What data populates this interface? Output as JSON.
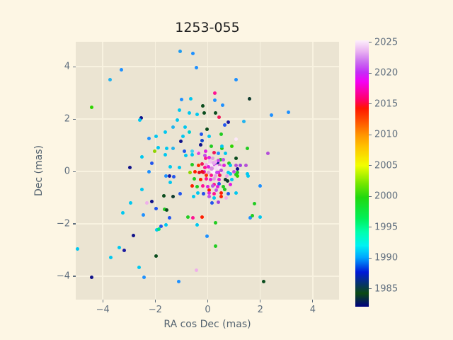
{
  "colors": {
    "figure_bg": "#fdf6e4",
    "plot_bg": "#ebe4d2",
    "grid": "#f8f2e0",
    "tick_text": "#5f6e7e",
    "axis_label_text": "#53626f",
    "title_text": "#222222"
  },
  "chart_data": {
    "type": "scatter",
    "title": "1253-055",
    "xlabel": "RA cos Dec (mas)",
    "ylabel": "Dec (mas)",
    "xlim": [
      -5.03,
      5.0
    ],
    "ylim": [
      -4.89,
      4.95
    ],
    "grid": true,
    "xticks": [
      -4,
      -2,
      0,
      2,
      4
    ],
    "xtick_labels": [
      "−4",
      "−2",
      "0",
      "2",
      "4"
    ],
    "yticks": [
      -4,
      -2,
      0,
      2,
      4
    ],
    "ytick_labels": [
      "−4",
      "−2",
      "0",
      "2",
      "4"
    ],
    "point_size": 5,
    "colorbar": {
      "min": 1982.1,
      "max": 2025.3,
      "ticks": [
        1985,
        1990,
        1995,
        2000,
        2005,
        2010,
        2015,
        2020,
        2025
      ],
      "tick_labels": [
        "1985",
        "1990",
        "1995",
        "2000",
        "2005",
        "2010",
        "2015",
        "2020",
        "2025"
      ],
      "legend_position": "right",
      "gradient_stops": [
        {
          "pos": 0.0,
          "color": "#000080"
        },
        {
          "pos": 0.05,
          "color": "#0b4a12"
        },
        {
          "pos": 0.13,
          "color": "#0018d8"
        },
        {
          "pos": 0.185,
          "color": "#00a6ff"
        },
        {
          "pos": 0.23,
          "color": "#00f2f2"
        },
        {
          "pos": 0.28,
          "color": "#00ffae"
        },
        {
          "pos": 0.33,
          "color": "#00f05a"
        },
        {
          "pos": 0.41,
          "color": "#20d80f"
        },
        {
          "pos": 0.46,
          "color": "#71e600"
        },
        {
          "pos": 0.53,
          "color": "#f2ff00"
        },
        {
          "pos": 0.6,
          "color": "#ffc300"
        },
        {
          "pos": 0.645,
          "color": "#ff9500"
        },
        {
          "pos": 0.7,
          "color": "#ff4d00"
        },
        {
          "pos": 0.745,
          "color": "#ff1600"
        },
        {
          "pos": 0.775,
          "color": "#ff0062"
        },
        {
          "pos": 0.845,
          "color": "#f400f4"
        },
        {
          "pos": 0.88,
          "color": "#c32cf7"
        },
        {
          "pos": 0.92,
          "color": "#cc70f0"
        },
        {
          "pos": 0.96,
          "color": "#eab4f2"
        },
        {
          "pos": 1.0,
          "color": "#fdeffb"
        }
      ]
    },
    "points": [
      {
        "x": -1.05,
        "y": 4.59,
        "c": "#1e9bf0"
      },
      {
        "x": -0.57,
        "y": 4.51,
        "c": "#1e90ff"
      },
      {
        "x": -0.43,
        "y": 3.95,
        "c": "#1e90ff"
      },
      {
        "x": -3.3,
        "y": 3.89,
        "c": "#1e90ff"
      },
      {
        "x": -3.73,
        "y": 3.51,
        "c": "#22b3ee"
      },
      {
        "x": -4.41,
        "y": 2.46,
        "c": "#2ed500"
      },
      {
        "x": -1.0,
        "y": 2.76,
        "c": "#1e90ff"
      },
      {
        "x": -0.65,
        "y": 2.78,
        "c": "#00c8f0"
      },
      {
        "x": -0.19,
        "y": 2.51,
        "c": "#0b4d1e"
      },
      {
        "x": -0.14,
        "y": 2.22,
        "c": "#0b4d1e"
      },
      {
        "x": -1.08,
        "y": 2.35,
        "c": "#00c8f0"
      },
      {
        "x": -0.7,
        "y": 2.24,
        "c": "#00c8f0"
      },
      {
        "x": -0.41,
        "y": 2.19,
        "c": "#00c8f0"
      },
      {
        "x": -2.54,
        "y": 2.05,
        "c": "#10128a"
      },
      {
        "x": -2.59,
        "y": 1.97,
        "c": "#00c8f0"
      },
      {
        "x": -0.03,
        "y": 1.62,
        "c": "#0b4d1e"
      },
      {
        "x": -1.16,
        "y": 1.97,
        "c": "#00c8f0"
      },
      {
        "x": -1.62,
        "y": 1.51,
        "c": "#00c8f0"
      },
      {
        "x": -1.32,
        "y": 1.7,
        "c": "#22b3ee"
      },
      {
        "x": -0.86,
        "y": 1.7,
        "c": "#00c8f0"
      },
      {
        "x": -0.7,
        "y": 1.49,
        "c": "#00d0d0"
      },
      {
        "x": -0.24,
        "y": 1.41,
        "c": "#2255ee"
      },
      {
        "x": -0.22,
        "y": 1.19,
        "c": "#1144cc"
      },
      {
        "x": -1.03,
        "y": 1.14,
        "c": "#10128a"
      },
      {
        "x": -0.95,
        "y": 1.35,
        "c": "#00c8f0"
      },
      {
        "x": -2.24,
        "y": 1.27,
        "c": "#1e90ff"
      },
      {
        "x": -1.97,
        "y": 1.35,
        "c": "#00c8f0"
      },
      {
        "x": -1.89,
        "y": 0.92,
        "c": "#00c8f0"
      },
      {
        "x": -2.03,
        "y": 0.76,
        "c": "#8fd400"
      },
      {
        "x": -1.57,
        "y": 0.89,
        "c": "#00c8f0"
      },
      {
        "x": -1.32,
        "y": 0.89,
        "c": "#22b3ee"
      },
      {
        "x": -1.62,
        "y": 0.65,
        "c": "#00c8f0"
      },
      {
        "x": -0.89,
        "y": 0.76,
        "c": "#2255ee"
      },
      {
        "x": -0.84,
        "y": 0.62,
        "c": "#00c8f0"
      },
      {
        "x": -0.59,
        "y": 0.65,
        "c": "#00c8f0"
      },
      {
        "x": -0.35,
        "y": 0.68,
        "c": "#e040e0"
      },
      {
        "x": -0.11,
        "y": 0.62,
        "c": "#c050e8"
      },
      {
        "x": -2.51,
        "y": 0.57,
        "c": "#00c8f0"
      },
      {
        "x": -2.14,
        "y": 0.32,
        "c": "#2255ee"
      },
      {
        "x": -2.97,
        "y": 0.14,
        "c": "#10128a"
      },
      {
        "x": -2.24,
        "y": 0.0,
        "c": "#1e90ff"
      },
      {
        "x": -1.43,
        "y": 0.19,
        "c": "#00c8f0"
      },
      {
        "x": -1.08,
        "y": 0.14,
        "c": "#00c8f0"
      },
      {
        "x": 1.08,
        "y": 3.51,
        "c": "#1e90ff"
      },
      {
        "x": 0.27,
        "y": 3.0,
        "c": "#ff1493"
      },
      {
        "x": 0.27,
        "y": 2.73,
        "c": "#1e90ff"
      },
      {
        "x": 0.57,
        "y": 2.54,
        "c": "#1e90ff"
      },
      {
        "x": 1.59,
        "y": 2.78,
        "c": "#0e3b2e"
      },
      {
        "x": 0.3,
        "y": 2.24,
        "c": "#0b4d1e"
      },
      {
        "x": 0.43,
        "y": 2.08,
        "c": "#f01858"
      },
      {
        "x": 2.43,
        "y": 2.14,
        "c": "#1e90ff"
      },
      {
        "x": 3.08,
        "y": 2.27,
        "c": "#1e90ff"
      },
      {
        "x": 0.78,
        "y": 1.89,
        "c": "#1a1aa0"
      },
      {
        "x": 0.65,
        "y": 1.78,
        "c": "#2255ee"
      },
      {
        "x": 1.38,
        "y": 1.92,
        "c": "#22b3ee"
      },
      {
        "x": 0.05,
        "y": 1.35,
        "c": "#00c8f0"
      },
      {
        "x": 0.51,
        "y": 1.43,
        "c": "#22cc22"
      },
      {
        "x": 1.08,
        "y": 1.22,
        "c": "#fce8fa"
      },
      {
        "x": 0.54,
        "y": 0.89,
        "c": "#22cc22"
      },
      {
        "x": 1.51,
        "y": 0.89,
        "c": "#22cc22"
      },
      {
        "x": 2.3,
        "y": 0.68,
        "c": "#b44fd8"
      },
      {
        "x": 0.49,
        "y": 0.46,
        "c": "#22cc22"
      },
      {
        "x": 0.81,
        "y": 0.32,
        "c": "#22cc22"
      },
      {
        "x": 0.38,
        "y": 0.35,
        "c": "#1a1aa0"
      },
      {
        "x": 1.14,
        "y": 0.11,
        "c": "#10128a"
      },
      {
        "x": 1.46,
        "y": 0.24,
        "c": "#b44fd8"
      },
      {
        "x": 1.08,
        "y": 0.24,
        "c": "#b44fd8"
      },
      {
        "x": 1.0,
        "y": 0.0,
        "c": "#c050e8"
      },
      {
        "x": 1.51,
        "y": -0.08,
        "c": "#00c8f0"
      },
      {
        "x": 0.86,
        "y": -0.08,
        "c": "#00c8f0"
      },
      {
        "x": 1.08,
        "y": -0.11,
        "c": "#22cc22"
      },
      {
        "x": -1.59,
        "y": -0.16,
        "c": "#1e90ff"
      },
      {
        "x": -1.46,
        "y": -0.16,
        "c": "#1a1aa0"
      },
      {
        "x": -1.3,
        "y": -0.19,
        "c": "#2255ee"
      },
      {
        "x": -1.43,
        "y": -0.41,
        "c": "#00c8f0"
      },
      {
        "x": -2.51,
        "y": -0.68,
        "c": "#00c8f0"
      },
      {
        "x": -1.68,
        "y": -0.92,
        "c": "#0b4d1e"
      },
      {
        "x": -1.32,
        "y": -0.95,
        "c": "#0e3b2e"
      },
      {
        "x": -1.05,
        "y": -0.86,
        "c": "#2255ee"
      },
      {
        "x": -0.54,
        "y": -0.95,
        "c": "#00c8f0"
      },
      {
        "x": -0.16,
        "y": -0.86,
        "c": "#ff1493"
      },
      {
        "x": 0.05,
        "y": -0.95,
        "c": "#c050e8"
      },
      {
        "x": -2.32,
        "y": -1.19,
        "c": "#efb0ea"
      },
      {
        "x": -2.14,
        "y": -1.14,
        "c": "#10128a"
      },
      {
        "x": -2.95,
        "y": -1.19,
        "c": "#00c8f0"
      },
      {
        "x": -1.97,
        "y": -1.41,
        "c": "#2255ee"
      },
      {
        "x": -1.65,
        "y": -1.43,
        "c": "#22cc22"
      },
      {
        "x": -1.57,
        "y": -1.46,
        "c": "#0b4d1e"
      },
      {
        "x": -2.46,
        "y": -1.65,
        "c": "#1e90ff"
      },
      {
        "x": -3.24,
        "y": -1.59,
        "c": "#00c8f0"
      },
      {
        "x": -1.46,
        "y": -1.78,
        "c": "#2255ee"
      },
      {
        "x": -0.76,
        "y": -1.73,
        "c": "#22cc22"
      },
      {
        "x": -0.57,
        "y": -1.76,
        "c": "#ff1493"
      },
      {
        "x": -0.22,
        "y": -1.73,
        "c": "#ff1e00"
      },
      {
        "x": -0.41,
        "y": -2.03,
        "c": "#00c8f0"
      },
      {
        "x": -1.78,
        "y": -2.08,
        "c": "#2255ee"
      },
      {
        "x": -1.59,
        "y": -2.05,
        "c": "#00c8f0"
      },
      {
        "x": -1.95,
        "y": -2.24,
        "c": "#00c8f0"
      },
      {
        "x": -1.86,
        "y": -2.19,
        "c": "#00e676"
      },
      {
        "x": -0.03,
        "y": -2.46,
        "c": "#1e90ff"
      },
      {
        "x": -2.84,
        "y": -2.43,
        "c": "#10128a"
      },
      {
        "x": -4.95,
        "y": -2.97,
        "c": "#00c8f0"
      },
      {
        "x": -3.38,
        "y": -2.89,
        "c": "#00c8f0"
      },
      {
        "x": -3.19,
        "y": -3.0,
        "c": "#1a1aa0"
      },
      {
        "x": -3.7,
        "y": -3.27,
        "c": "#00c8f0"
      },
      {
        "x": -1.97,
        "y": -3.24,
        "c": "#0b4d1e"
      },
      {
        "x": -2.62,
        "y": -3.65,
        "c": "#00c8f0"
      },
      {
        "x": -4.41,
        "y": -4.05,
        "c": "#10128a"
      },
      {
        "x": -2.43,
        "y": -4.05,
        "c": "#1e90ff"
      },
      {
        "x": -1.11,
        "y": -4.19,
        "c": "#1e90ff"
      },
      {
        "x": -0.43,
        "y": -3.78,
        "c": "#efb0ea"
      },
      {
        "x": 0.73,
        "y": -0.16,
        "c": "#e8a0e8"
      },
      {
        "x": 1.14,
        "y": -0.16,
        "c": "#2ed500"
      },
      {
        "x": 1.54,
        "y": -0.16,
        "c": "#00c8f0"
      },
      {
        "x": 0.24,
        "y": -0.49,
        "c": "#ff1493"
      },
      {
        "x": 0.43,
        "y": -0.46,
        "c": "#2255ee"
      },
      {
        "x": 0.76,
        "y": -0.35,
        "c": "#0e3b2e"
      },
      {
        "x": 0.86,
        "y": -0.49,
        "c": "#e020e0"
      },
      {
        "x": 0.05,
        "y": -0.7,
        "c": "#ff1e00"
      },
      {
        "x": 0.32,
        "y": -0.7,
        "c": "#c050e8"
      },
      {
        "x": 0.65,
        "y": -0.68,
        "c": "#22cc22"
      },
      {
        "x": 0.51,
        "y": -0.95,
        "c": "#ff1e00"
      },
      {
        "x": 0.7,
        "y": -1.0,
        "c": "#efb0ea"
      },
      {
        "x": 0.24,
        "y": -1.0,
        "c": "#00c8f0"
      },
      {
        "x": 0.41,
        "y": -1.16,
        "c": "#a040e0"
      },
      {
        "x": 0.16,
        "y": -1.19,
        "c": "#2255ee"
      },
      {
        "x": 2.0,
        "y": -0.54,
        "c": "#1e90ff"
      },
      {
        "x": 1.78,
        "y": -1.24,
        "c": "#22cc22"
      },
      {
        "x": 1.62,
        "y": -1.76,
        "c": "#1e90ff"
      },
      {
        "x": 1.7,
        "y": -1.7,
        "c": "#22cc22"
      },
      {
        "x": 2.0,
        "y": -1.73,
        "c": "#00c8f0"
      },
      {
        "x": 0.3,
        "y": -1.97,
        "c": "#22cc22"
      },
      {
        "x": 0.3,
        "y": -2.86,
        "c": "#22cc22"
      },
      {
        "x": 2.14,
        "y": -4.19,
        "c": "#0b4d1e"
      },
      {
        "x": -0.27,
        "y": 1.03,
        "c": "#10128a"
      },
      {
        "x": 0.14,
        "y": 0.97,
        "c": "#22cc22"
      },
      {
        "x": 0.54,
        "y": 0.95,
        "c": "#00c8f0"
      },
      {
        "x": 0.92,
        "y": 0.95,
        "c": "#2ed500"
      },
      {
        "x": -0.59,
        "y": 0.76,
        "c": "#40d0f0"
      },
      {
        "x": -0.43,
        "y": 0.78,
        "c": "#f8d0f0"
      },
      {
        "x": -0.08,
        "y": 0.78,
        "c": "#e020e0"
      },
      {
        "x": 0.24,
        "y": 0.73,
        "c": "#f01858"
      },
      {
        "x": 0.41,
        "y": 0.68,
        "c": "#1e90ff"
      },
      {
        "x": 0.68,
        "y": 0.7,
        "c": "#00c8f0"
      },
      {
        "x": -0.08,
        "y": 0.51,
        "c": "#ff1493"
      },
      {
        "x": 0.05,
        "y": 0.54,
        "c": "#e020e0"
      },
      {
        "x": 0.19,
        "y": 0.49,
        "c": "#dda0dd"
      },
      {
        "x": 0.41,
        "y": 0.43,
        "c": "#cc44ee"
      },
      {
        "x": 0.59,
        "y": 0.46,
        "c": "#c050e8"
      },
      {
        "x": 1.08,
        "y": 0.49,
        "c": "#0b4d1e"
      },
      {
        "x": -0.59,
        "y": 0.27,
        "c": "#22cc22"
      },
      {
        "x": -0.35,
        "y": 0.24,
        "c": "#ff3000"
      },
      {
        "x": -0.22,
        "y": 0.3,
        "c": "#f01858"
      },
      {
        "x": -0.05,
        "y": 0.27,
        "c": "#efb0ea"
      },
      {
        "x": 0.11,
        "y": 0.24,
        "c": "#fbeaf8",
        "s": 7
      },
      {
        "x": 0.27,
        "y": 0.27,
        "c": "#cc44ee"
      },
      {
        "x": 0.46,
        "y": 0.24,
        "c": "#da70d6"
      },
      {
        "x": 0.86,
        "y": 0.24,
        "c": "#00c8f0"
      },
      {
        "x": 1.24,
        "y": 0.22,
        "c": "#a040e0"
      },
      {
        "x": -0.68,
        "y": -0.03,
        "c": "#8fd400"
      },
      {
        "x": -0.49,
        "y": 0.0,
        "c": "#ff1e00"
      },
      {
        "x": -0.32,
        "y": -0.03,
        "c": "#e80820"
      },
      {
        "x": -0.14,
        "y": 0.0,
        "c": "#e020e0"
      },
      {
        "x": 0.03,
        "y": -0.03,
        "c": "#dda0dd"
      },
      {
        "x": 0.22,
        "y": 0.0,
        "c": "#fdf2fc",
        "s": 7
      },
      {
        "x": 0.41,
        "y": -0.03,
        "c": "#e020e0"
      },
      {
        "x": 0.59,
        "y": -0.03,
        "c": "#f6c8f0"
      },
      {
        "x": 0.78,
        "y": -0.05,
        "c": "#00c8f0"
      },
      {
        "x": 1.14,
        "y": -0.03,
        "c": "#22cc22"
      },
      {
        "x": -0.51,
        "y": -0.27,
        "c": "#22cc22"
      },
      {
        "x": -0.27,
        "y": -0.3,
        "c": "#ff1e00"
      },
      {
        "x": -0.05,
        "y": -0.27,
        "c": "#ff1493"
      },
      {
        "x": 0.11,
        "y": -0.3,
        "c": "#e020e0"
      },
      {
        "x": 0.24,
        "y": -0.27,
        "c": "#dda0dd"
      },
      {
        "x": 0.43,
        "y": -0.3,
        "c": "#e020e0"
      },
      {
        "x": 0.68,
        "y": -0.3,
        "c": "#0e3b2e"
      },
      {
        "x": 0.92,
        "y": -0.3,
        "c": "#00c8f0"
      },
      {
        "x": -0.59,
        "y": -0.54,
        "c": "#ff1e00"
      },
      {
        "x": -0.41,
        "y": -0.57,
        "c": "#22cc22"
      },
      {
        "x": -0.19,
        "y": -0.54,
        "c": "#ff1493"
      },
      {
        "x": 0.0,
        "y": -0.57,
        "c": "#e020e0"
      },
      {
        "x": 0.19,
        "y": -0.54,
        "c": "#c050e8"
      },
      {
        "x": 0.38,
        "y": -0.57,
        "c": "#e020e0"
      },
      {
        "x": 0.59,
        "y": -0.57,
        "c": "#22cc22"
      },
      {
        "x": -0.38,
        "y": -0.81,
        "c": "#00c8f0"
      },
      {
        "x": -0.16,
        "y": -0.84,
        "c": "#2255ee"
      },
      {
        "x": 0.05,
        "y": -0.81,
        "c": "#e020e0"
      },
      {
        "x": 0.24,
        "y": -0.84,
        "c": "#ff1493"
      },
      {
        "x": 0.51,
        "y": -0.81,
        "c": "#ff1e00"
      },
      {
        "x": 0.78,
        "y": -0.84,
        "c": "#2255ee"
      },
      {
        "x": 1.08,
        "y": -0.81,
        "c": "#00c8f0"
      },
      {
        "x": 0.08,
        "y": 0.38,
        "c": "#f2c6ee",
        "s": 6
      },
      {
        "x": 0.22,
        "y": 0.32,
        "c": "#e8a8ec",
        "s": 6
      },
      {
        "x": 0.32,
        "y": 0.16,
        "c": "#f6def4",
        "s": 7
      },
      {
        "x": 0.16,
        "y": 0.11,
        "c": "#d98ae0",
        "s": 6
      },
      {
        "x": 0.3,
        "y": 0.38,
        "c": "#efb0ea"
      },
      {
        "x": 0.43,
        "y": 0.14,
        "c": "#fce8fa",
        "s": 6
      },
      {
        "x": 0.03,
        "y": 0.19,
        "c": "#e020e0"
      },
      {
        "x": 0.35,
        "y": -0.03,
        "c": "#cc44ee"
      },
      {
        "x": 0.14,
        "y": -0.14,
        "c": "#ff1493"
      },
      {
        "x": 0.3,
        "y": -0.16,
        "c": "#e8a0e8"
      },
      {
        "x": 0.46,
        "y": -0.14,
        "c": "#f01858"
      },
      {
        "x": -0.05,
        "y": -0.14,
        "c": "#ff3000"
      },
      {
        "x": -0.16,
        "y": -0.03,
        "c": "#f01858"
      },
      {
        "x": 0.51,
        "y": 0.05,
        "c": "#b44fd8"
      },
      {
        "x": 0.62,
        "y": 0.22,
        "c": "#e020e0"
      },
      {
        "x": -0.11,
        "y": 0.16,
        "c": "#ff1493"
      },
      {
        "x": -0.22,
        "y": 0.0,
        "c": "#e80820"
      }
    ]
  }
}
